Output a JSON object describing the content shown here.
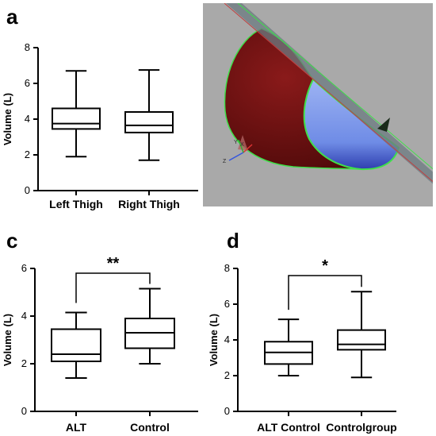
{
  "panels": {
    "a": "a",
    "b": "b",
    "c": "c",
    "d": "d"
  },
  "chart_data": [
    {
      "id": "a",
      "type": "boxplot",
      "ylabel": "Volume (L)",
      "ylim": [
        0,
        8
      ],
      "yticks": [
        0,
        2,
        4,
        6,
        8
      ],
      "categories": [
        "Left Thigh",
        "Right Thigh"
      ],
      "boxes": [
        {
          "min": 1.9,
          "q1": 3.45,
          "median": 3.75,
          "q3": 4.6,
          "max": 6.7
        },
        {
          "min": 1.7,
          "q1": 3.25,
          "median": 3.65,
          "q3": 4.4,
          "max": 6.75
        }
      ],
      "significance": null
    },
    {
      "id": "c",
      "type": "boxplot",
      "ylabel": "Volume (L)",
      "ylim": [
        0,
        6
      ],
      "yticks": [
        0,
        2,
        4,
        6
      ],
      "categories": [
        "ALT",
        "Control"
      ],
      "boxes": [
        {
          "min": 1.4,
          "q1": 2.1,
          "median": 2.4,
          "q3": 3.45,
          "max": 4.15
        },
        {
          "min": 2.0,
          "q1": 2.65,
          "median": 3.3,
          "q3": 3.9,
          "max": 5.15
        }
      ],
      "significance": {
        "label": "**",
        "from": 0,
        "to": 1,
        "y": 5.8
      }
    },
    {
      "id": "d",
      "type": "boxplot",
      "ylabel": "Volume (L)",
      "ylim": [
        0,
        8
      ],
      "yticks": [
        0,
        2,
        4,
        6,
        8
      ],
      "categories": [
        "ALT Control",
        "Controlgroup"
      ],
      "boxes": [
        {
          "min": 2.0,
          "q1": 2.65,
          "median": 3.3,
          "q3": 3.9,
          "max": 5.15
        },
        {
          "min": 1.9,
          "q1": 3.45,
          "median": 3.75,
          "q3": 4.55,
          "max": 6.7
        }
      ],
      "significance": {
        "label": "*",
        "from": 0,
        "to": 1,
        "y": 7.6
      }
    }
  ],
  "render": {
    "image_b": {
      "description_colors": {
        "background": "#a8a8a8",
        "tissue": "#6e1010",
        "fill": "#7b96ee",
        "outline": "#3fe04a",
        "plane": "#6f7f86"
      }
    },
    "axis_labels_3d": [
      "Y",
      "X",
      "Z"
    ]
  }
}
